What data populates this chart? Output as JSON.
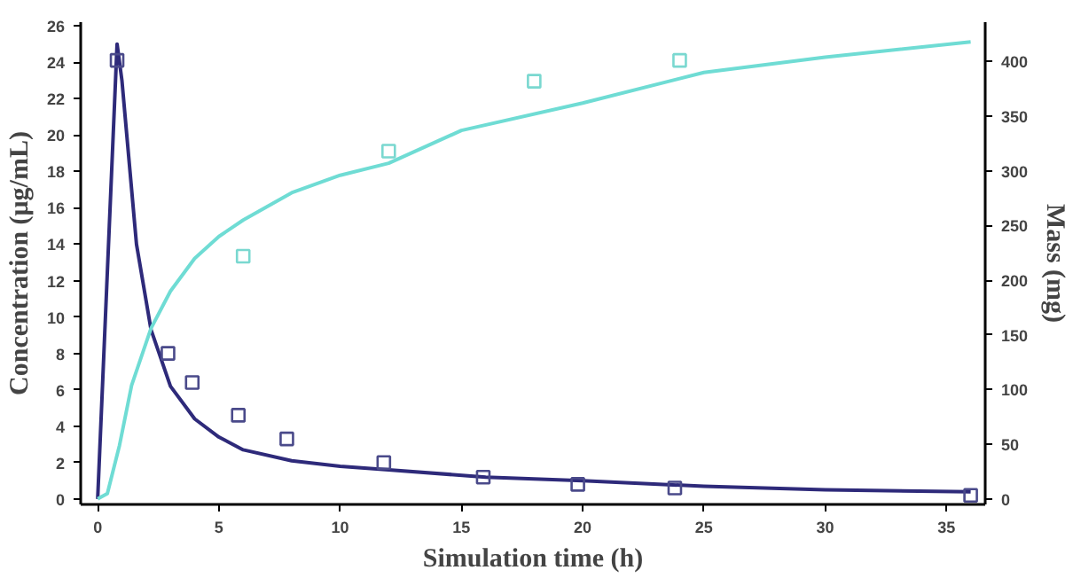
{
  "chart_data": {
    "type": "line",
    "xlabel": "Simulation time (h)",
    "ylabel": "Concentration (μg/mL)",
    "y2label": "Mass (mg)",
    "xlim": [
      -0.7,
      36.6
    ],
    "xticks": [
      0,
      5,
      10,
      15,
      20,
      25,
      30,
      35
    ],
    "ylim": [
      -0.3,
      26.2
    ],
    "yticks": [
      0,
      2,
      4,
      6,
      8,
      10,
      12,
      14,
      16,
      18,
      20,
      22,
      24,
      26
    ],
    "y2lim": [
      -5,
      436
    ],
    "y2ticks": [
      0,
      50,
      100,
      150,
      200,
      250,
      300,
      350,
      400
    ],
    "grid": false,
    "series": [
      {
        "color": "#2e2a7a",
        "line_style": "solid",
        "x": [
          0,
          0.8,
          1.0,
          1.2,
          1.6,
          2.2,
          3,
          4,
          5,
          6,
          8,
          10,
          12,
          16,
          20,
          25,
          30,
          36
        ],
        "values": [
          0,
          25,
          23,
          20,
          14,
          9.3,
          6.2,
          4.4,
          3.4,
          2.7,
          2.1,
          1.8,
          1.6,
          1.2,
          1.0,
          0.7,
          0.5,
          0.4
        ]
      },
      {
        "type": "scatter",
        "marker": "square",
        "color": "#4a4a8a",
        "x": [
          0.8,
          2.9,
          3.9,
          5.8,
          7.8,
          11.8,
          15.9,
          19.8,
          23.8,
          36.0
        ],
        "values": [
          24.1,
          8.0,
          6.4,
          4.6,
          3.3,
          2.0,
          1.2,
          0.8,
          0.6,
          0.2
        ]
      },
      {
        "axis": "y2",
        "color": "#6fdcd4",
        "line_style": "solid",
        "x": [
          0,
          0.4,
          0.9,
          1.4,
          2.2,
          3,
          4,
          5,
          6,
          8,
          10,
          12,
          15,
          20,
          25,
          30,
          36
        ],
        "values": [
          0,
          5,
          49,
          104,
          156,
          190,
          220,
          240,
          255,
          280,
          296,
          307,
          337,
          362,
          390,
          404,
          418
        ]
      },
      {
        "type": "scatter",
        "axis": "y2",
        "marker": "square",
        "color": "#7ad8d0",
        "x": [
          6.0,
          12.0,
          18.0,
          24.0
        ],
        "values": [
          222,
          318,
          382,
          401
        ]
      }
    ]
  }
}
